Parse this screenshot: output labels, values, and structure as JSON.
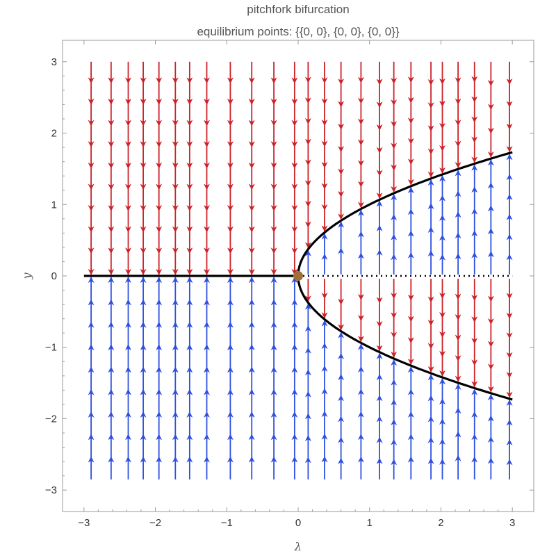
{
  "chart_data": {
    "type": "vector-field",
    "title": "pitchfork bifurcation",
    "subtitle": "equilibrium points: {{0, 0}, {0, 0}, {0, 0}}",
    "xlabel": "λ",
    "ylabel": "y",
    "xlim": [
      -3.3,
      3.3
    ],
    "ylim": [
      -3.3,
      3.3
    ],
    "xticks": [
      -3,
      -2,
      -1,
      0,
      1,
      2,
      3
    ],
    "yticks": [
      -3,
      -2,
      -1,
      0,
      1,
      2,
      3
    ],
    "xtick_labels": [
      "−3",
      "−2",
      "−1",
      "0",
      "1",
      "2",
      "3"
    ],
    "ytick_labels": [
      "−3",
      "−2",
      "−1",
      "0",
      "1",
      "2",
      "3"
    ],
    "field": {
      "dlambda": 0,
      "dy": "lambda*y - y^3"
    },
    "colors": {
      "decreasing": "#cc2229",
      "increasing": "#2f4fe0",
      "curve": "#000000",
      "point": "#a0703a",
      "frame": "#999999"
    },
    "stable_branches": [
      {
        "equation": "y = 0",
        "lambda_range": [
          -3,
          0
        ]
      },
      {
        "equation": "y = sqrt(lambda)",
        "lambda_range": [
          0,
          3
        ]
      },
      {
        "equation": "y = -sqrt(lambda)",
        "lambda_range": [
          0,
          3
        ]
      }
    ],
    "unstable_branches": [
      {
        "equation": "y = 0",
        "lambda_range": [
          0,
          3
        ]
      }
    ],
    "bifurcation_point": {
      "x": 0,
      "y": 0
    },
    "field_columns": [
      -2.9,
      -2.62,
      -2.38,
      -2.17,
      -1.95,
      -1.72,
      -1.52,
      -1.28,
      -0.95,
      -0.65,
      -0.34,
      -0.05,
      0.14,
      0.37,
      0.6,
      0.88,
      1.14,
      1.34,
      1.58,
      1.86,
      2.02,
      2.24,
      2.47,
      2.7,
      2.96
    ],
    "grid": false,
    "legend": "none"
  }
}
